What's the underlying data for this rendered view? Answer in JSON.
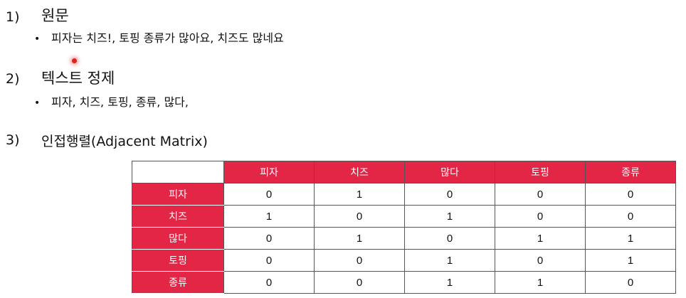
{
  "sections": [
    {
      "number": "1)",
      "title": "원문",
      "bullet": "피자는 치즈!, 토핑 종류가 많아요, 치즈도 많네요"
    },
    {
      "number": "2)",
      "title": "텍스트 정제",
      "bullet": "피자, 치즈, 토핑, 종류, 많다,"
    },
    {
      "number": "3)",
      "title": "인접행렬(Adjacent Matrix)"
    }
  ],
  "bullet_symbol": "•",
  "colors": {
    "header_bg": "#e32646",
    "header_text": "#ffffff",
    "pointer": "#e02020"
  },
  "matrix": {
    "columns": [
      "피자",
      "치즈",
      "많다",
      "토핑",
      "종류"
    ],
    "rows": [
      {
        "label": "피자",
        "values": [
          "0",
          "1",
          "0",
          "0",
          "0"
        ]
      },
      {
        "label": "치즈",
        "values": [
          "1",
          "0",
          "1",
          "0",
          "0"
        ]
      },
      {
        "label": "많다",
        "values": [
          "0",
          "1",
          "0",
          "1",
          "1"
        ]
      },
      {
        "label": "토핑",
        "values": [
          "0",
          "0",
          "1",
          "0",
          "1"
        ]
      },
      {
        "label": "종류",
        "values": [
          "0",
          "0",
          "1",
          "1",
          "0"
        ]
      }
    ]
  }
}
